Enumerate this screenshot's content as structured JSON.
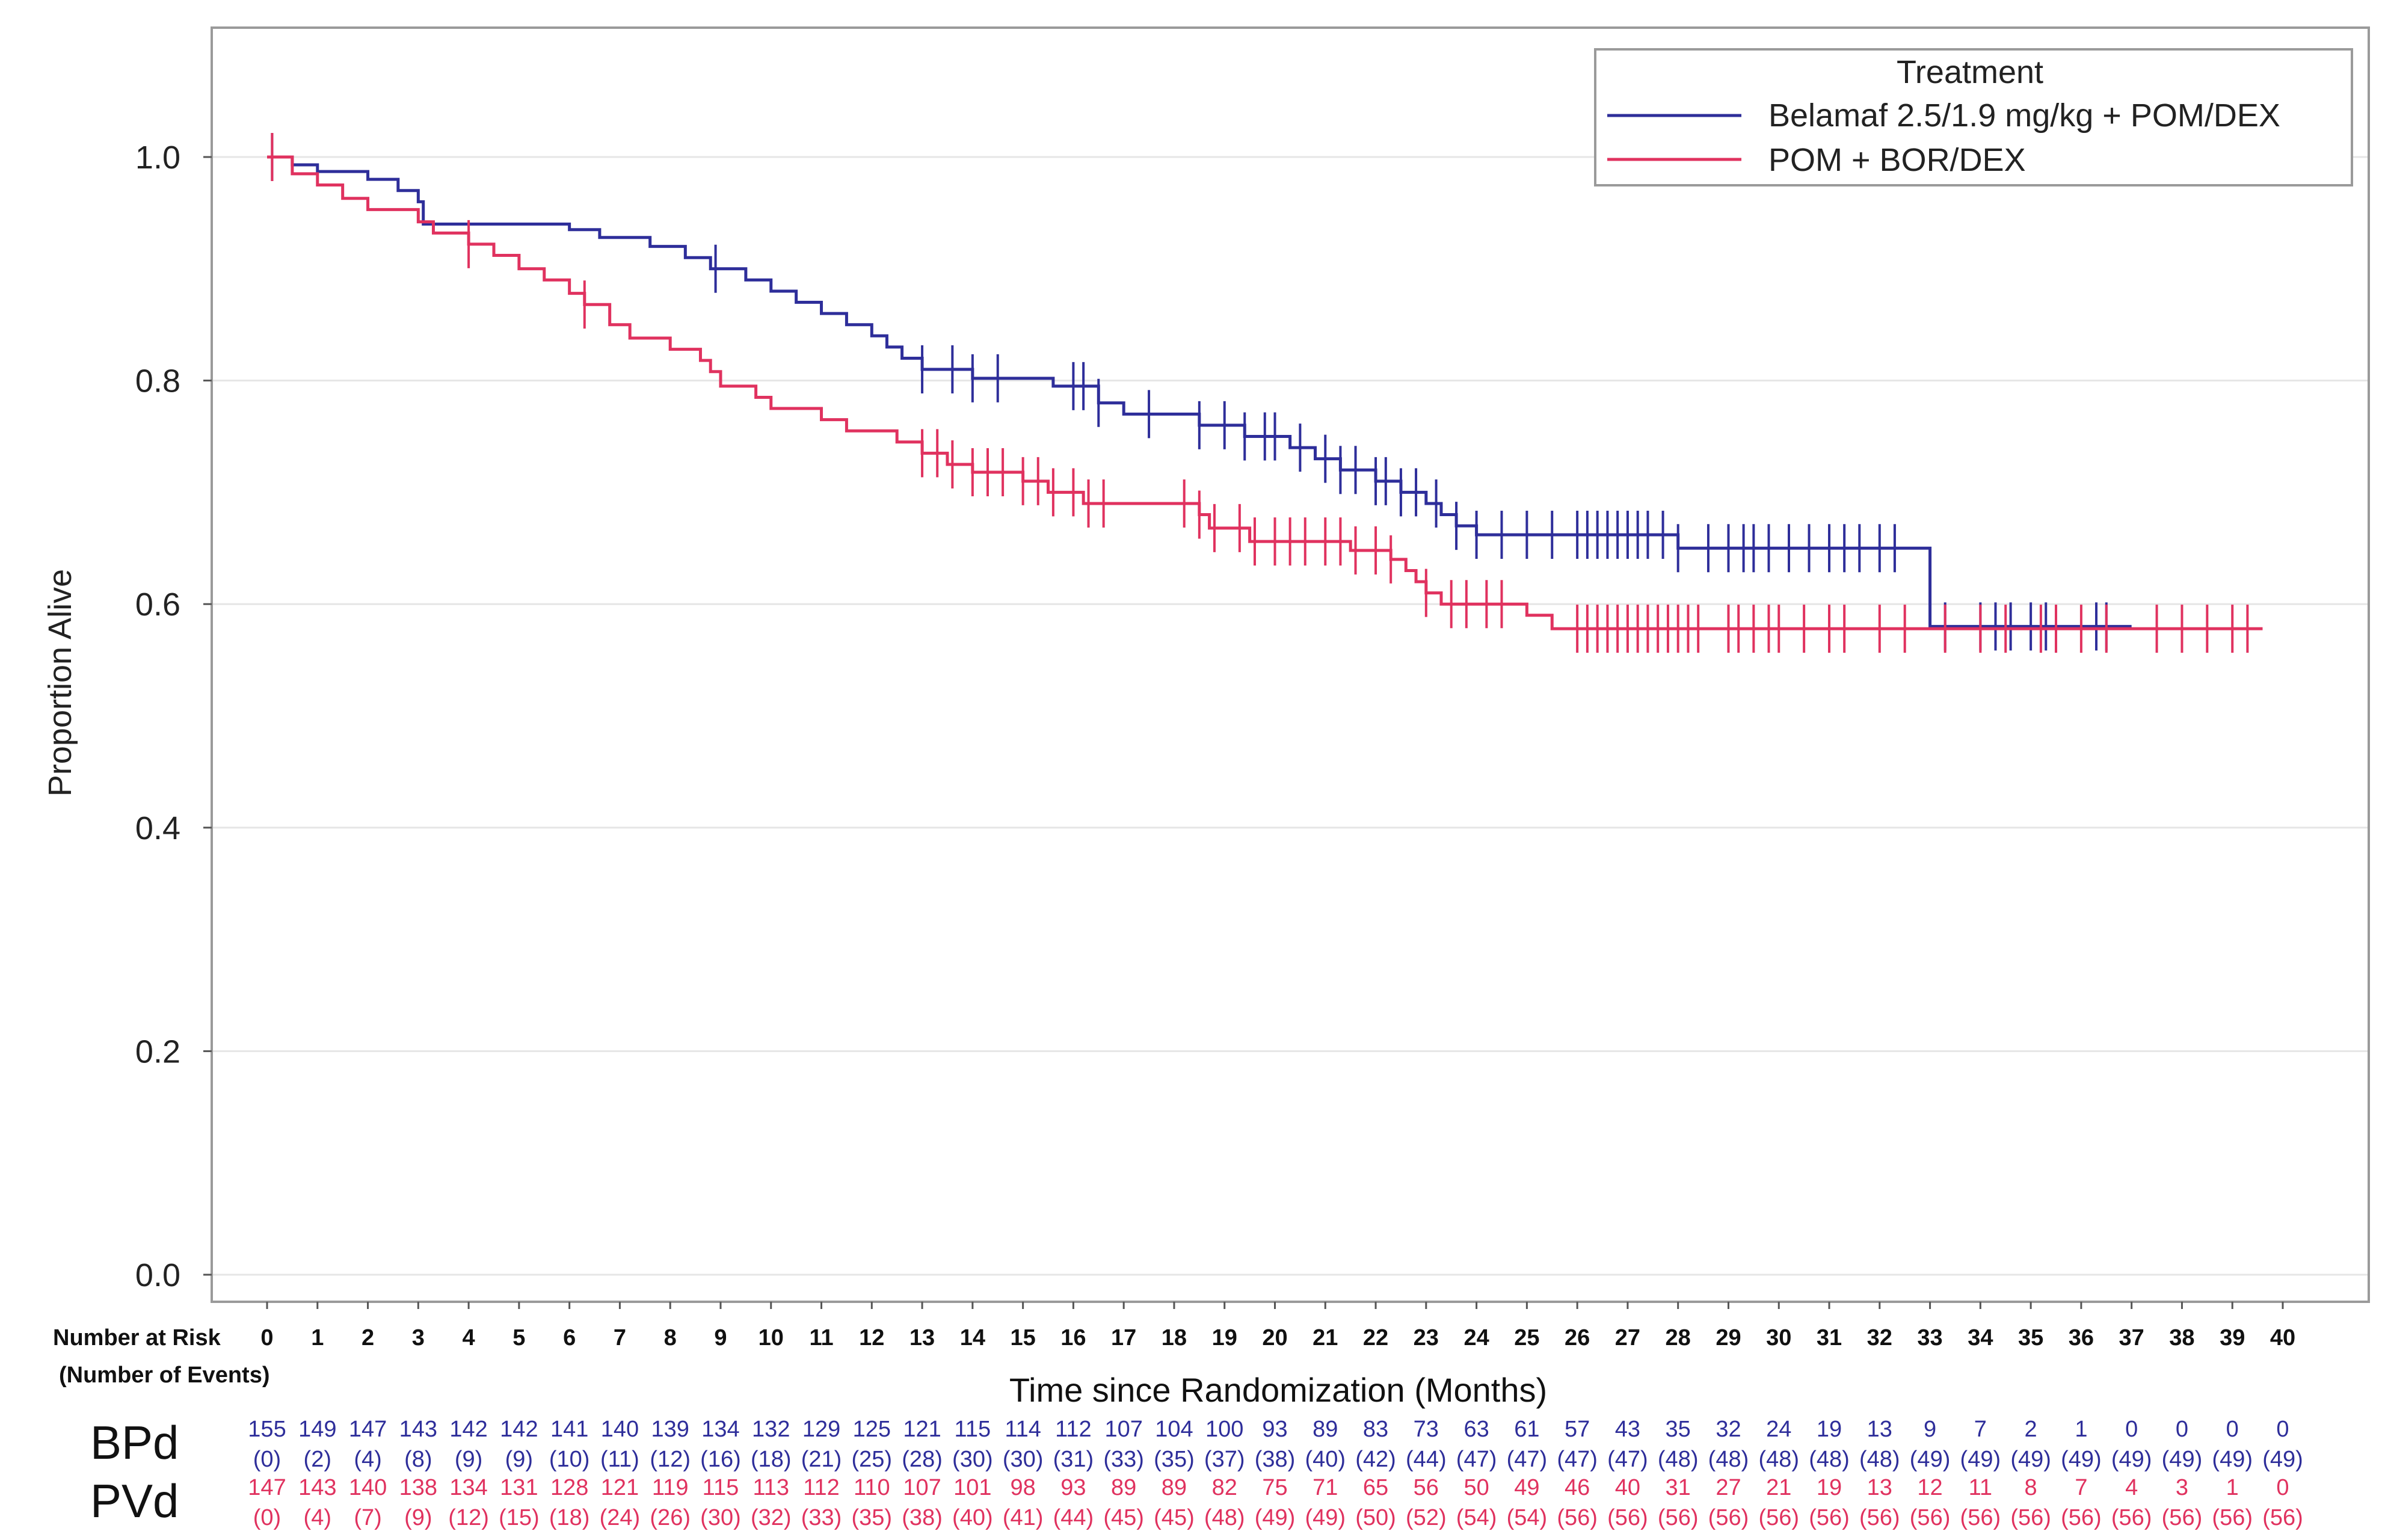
{
  "chart_data": {
    "type": "line",
    "subtype": "kaplan-meier step",
    "xlabel": "Time since Randomization (Months)",
    "ylabel": "Proportion Alive",
    "xlim": [
      0,
      40
    ],
    "ylim": [
      0,
      1.0
    ],
    "x_ticks": [
      0,
      1,
      2,
      3,
      4,
      5,
      6,
      7,
      8,
      9,
      10,
      11,
      12,
      13,
      14,
      15,
      16,
      17,
      18,
      19,
      20,
      21,
      22,
      23,
      24,
      25,
      26,
      27,
      28,
      29,
      30,
      31,
      32,
      33,
      34,
      35,
      36,
      37,
      38,
      39,
      40
    ],
    "y_ticks": [
      "0.0",
      "0.2",
      "0.4",
      "0.6",
      "0.8",
      "1.0"
    ],
    "grid": "horizontal",
    "legend": {
      "title": "Treatment",
      "placement": "top-right"
    },
    "series": [
      {
        "name": "Belamaf 2.5/1.9 mg/kg + POM/DEX",
        "color": "#2e2e9a",
        "steps": [
          [
            0,
            1.0
          ],
          [
            0.5,
            0.993
          ],
          [
            1,
            0.987
          ],
          [
            2,
            0.98
          ],
          [
            2.6,
            0.97
          ],
          [
            3,
            0.96
          ],
          [
            3.1,
            0.94
          ],
          [
            6,
            0.935
          ],
          [
            6.6,
            0.928
          ],
          [
            7.6,
            0.92
          ],
          [
            8.3,
            0.91
          ],
          [
            8.8,
            0.9
          ],
          [
            9.5,
            0.89
          ],
          [
            10,
            0.88
          ],
          [
            10.5,
            0.87
          ],
          [
            11,
            0.86
          ],
          [
            11.5,
            0.85
          ],
          [
            12,
            0.84
          ],
          [
            12.3,
            0.83
          ],
          [
            12.6,
            0.82
          ],
          [
            13,
            0.81
          ],
          [
            14,
            0.802
          ],
          [
            15.6,
            0.795
          ],
          [
            16.5,
            0.78
          ],
          [
            17,
            0.77
          ],
          [
            18.5,
            0.76
          ],
          [
            19.4,
            0.75
          ],
          [
            20.3,
            0.74
          ],
          [
            20.8,
            0.73
          ],
          [
            21.3,
            0.72
          ],
          [
            22,
            0.71
          ],
          [
            22.5,
            0.7
          ],
          [
            23,
            0.69
          ],
          [
            23.3,
            0.68
          ],
          [
            23.6,
            0.67
          ],
          [
            24,
            0.662
          ],
          [
            28,
            0.65
          ],
          [
            33,
            0.58
          ],
          [
            37,
            0.58
          ]
        ],
        "censored": [
          0.1,
          8.9,
          13,
          13.6,
          14,
          14.5,
          16,
          16.2,
          16.5,
          17.5,
          18.5,
          19,
          19.4,
          19.8,
          20,
          20.5,
          21,
          21.3,
          21.6,
          22,
          22.2,
          22.5,
          22.8,
          23.2,
          23.6,
          24,
          24.5,
          25,
          25.5,
          26,
          26.2,
          26.4,
          26.6,
          26.8,
          27,
          27.2,
          27.4,
          27.7,
          28,
          28.6,
          29,
          29.3,
          29.5,
          29.8,
          30.2,
          30.6,
          31,
          31.3,
          31.6,
          32,
          32.3,
          33.3,
          34,
          34.3,
          34.6,
          35,
          35.3,
          36.3,
          36.5
        ]
      },
      {
        "name": "POM + BOR/DEX",
        "color": "#e0325f",
        "steps": [
          [
            0,
            1.0
          ],
          [
            0.5,
            0.985
          ],
          [
            1,
            0.975
          ],
          [
            1.5,
            0.963
          ],
          [
            2,
            0.953
          ],
          [
            3,
            0.942
          ],
          [
            3.3,
            0.932
          ],
          [
            4,
            0.922
          ],
          [
            4.5,
            0.912
          ],
          [
            5,
            0.9
          ],
          [
            5.5,
            0.89
          ],
          [
            6,
            0.878
          ],
          [
            6.3,
            0.868
          ],
          [
            6.8,
            0.85
          ],
          [
            7.2,
            0.838
          ],
          [
            8,
            0.828
          ],
          [
            8.6,
            0.818
          ],
          [
            8.8,
            0.808
          ],
          [
            9,
            0.795
          ],
          [
            9.7,
            0.785
          ],
          [
            10,
            0.775
          ],
          [
            11,
            0.765
          ],
          [
            11.5,
            0.755
          ],
          [
            12.5,
            0.745
          ],
          [
            13,
            0.735
          ],
          [
            13.5,
            0.725
          ],
          [
            14,
            0.718
          ],
          [
            15,
            0.71
          ],
          [
            15.5,
            0.7
          ],
          [
            16.2,
            0.69
          ],
          [
            18.5,
            0.68
          ],
          [
            18.7,
            0.668
          ],
          [
            19.5,
            0.656
          ],
          [
            21.5,
            0.648
          ],
          [
            22.3,
            0.64
          ],
          [
            22.6,
            0.63
          ],
          [
            22.8,
            0.62
          ],
          [
            23,
            0.61
          ],
          [
            23.3,
            0.6
          ],
          [
            25,
            0.59
          ],
          [
            25.5,
            0.578
          ],
          [
            39.6,
            0.578
          ]
        ],
        "censored": [
          0.1,
          4,
          6.3,
          13,
          13.3,
          13.6,
          14,
          14.3,
          14.6,
          15,
          15.3,
          15.6,
          16,
          16.3,
          16.6,
          18.2,
          18.5,
          18.8,
          19.3,
          19.6,
          20,
          20.3,
          20.6,
          21,
          21.3,
          21.6,
          22,
          22.3,
          23,
          23.5,
          23.8,
          24.2,
          24.5,
          26,
          26.2,
          26.4,
          26.6,
          26.8,
          27,
          27.2,
          27.4,
          27.6,
          27.8,
          28,
          28.2,
          28.4,
          29,
          29.2,
          29.5,
          29.8,
          30,
          30.5,
          31,
          31.3,
          32,
          32.5,
          33.3,
          34,
          34.5,
          35.2,
          35.5,
          36,
          36.5,
          37.5,
          38,
          38.5,
          39,
          39.3
        ]
      }
    ],
    "risk_table": {
      "header": "Number at Risk",
      "subheader": "(Number of Events)",
      "rows": [
        {
          "label": "BPd",
          "color": "#2e2e9a",
          "at_risk": [
            "155",
            "149",
            "147",
            "143",
            "142",
            "142",
            "141",
            "140",
            "139",
            "134",
            "132",
            "129",
            "125",
            "121",
            "115",
            "114",
            "112",
            "107",
            "104",
            "100",
            "93",
            "89",
            "83",
            "73",
            "63",
            "61",
            "57",
            "43",
            "35",
            "32",
            "24",
            "19",
            "13",
            "9",
            "7",
            "2",
            "1",
            "0",
            "0",
            "0",
            "0"
          ],
          "events": [
            "(0)",
            "(2)",
            "(4)",
            "(8)",
            "(9)",
            "(9)",
            "(10)",
            "(11)",
            "(12)",
            "(16)",
            "(18)",
            "(21)",
            "(25)",
            "(28)",
            "(30)",
            "(30)",
            "(31)",
            "(33)",
            "(35)",
            "(37)",
            "(38)",
            "(40)",
            "(42)",
            "(44)",
            "(47)",
            "(47)",
            "(47)",
            "(47)",
            "(48)",
            "(48)",
            "(48)",
            "(48)",
            "(48)",
            "(49)",
            "(49)",
            "(49)",
            "(49)",
            "(49)",
            "(49)",
            "(49)",
            "(49)"
          ]
        },
        {
          "label": "PVd",
          "color": "#e0325f",
          "at_risk": [
            "147",
            "143",
            "140",
            "138",
            "134",
            "131",
            "128",
            "121",
            "119",
            "115",
            "113",
            "112",
            "110",
            "107",
            "101",
            "98",
            "93",
            "89",
            "89",
            "82",
            "75",
            "71",
            "65",
            "56",
            "50",
            "49",
            "46",
            "40",
            "31",
            "27",
            "21",
            "19",
            "13",
            "12",
            "11",
            "8",
            "7",
            "4",
            "3",
            "1",
            "0"
          ],
          "events": [
            "(0)",
            "(4)",
            "(7)",
            "(9)",
            "(12)",
            "(15)",
            "(18)",
            "(24)",
            "(26)",
            "(30)",
            "(32)",
            "(33)",
            "(35)",
            "(38)",
            "(40)",
            "(41)",
            "(44)",
            "(45)",
            "(45)",
            "(48)",
            "(49)",
            "(49)",
            "(50)",
            "(52)",
            "(54)",
            "(54)",
            "(56)",
            "(56)",
            "(56)",
            "(56)",
            "(56)",
            "(56)",
            "(56)",
            "(56)",
            "(56)",
            "(56)",
            "(56)",
            "(56)",
            "(56)",
            "(56)",
            "(56)"
          ]
        }
      ]
    }
  }
}
